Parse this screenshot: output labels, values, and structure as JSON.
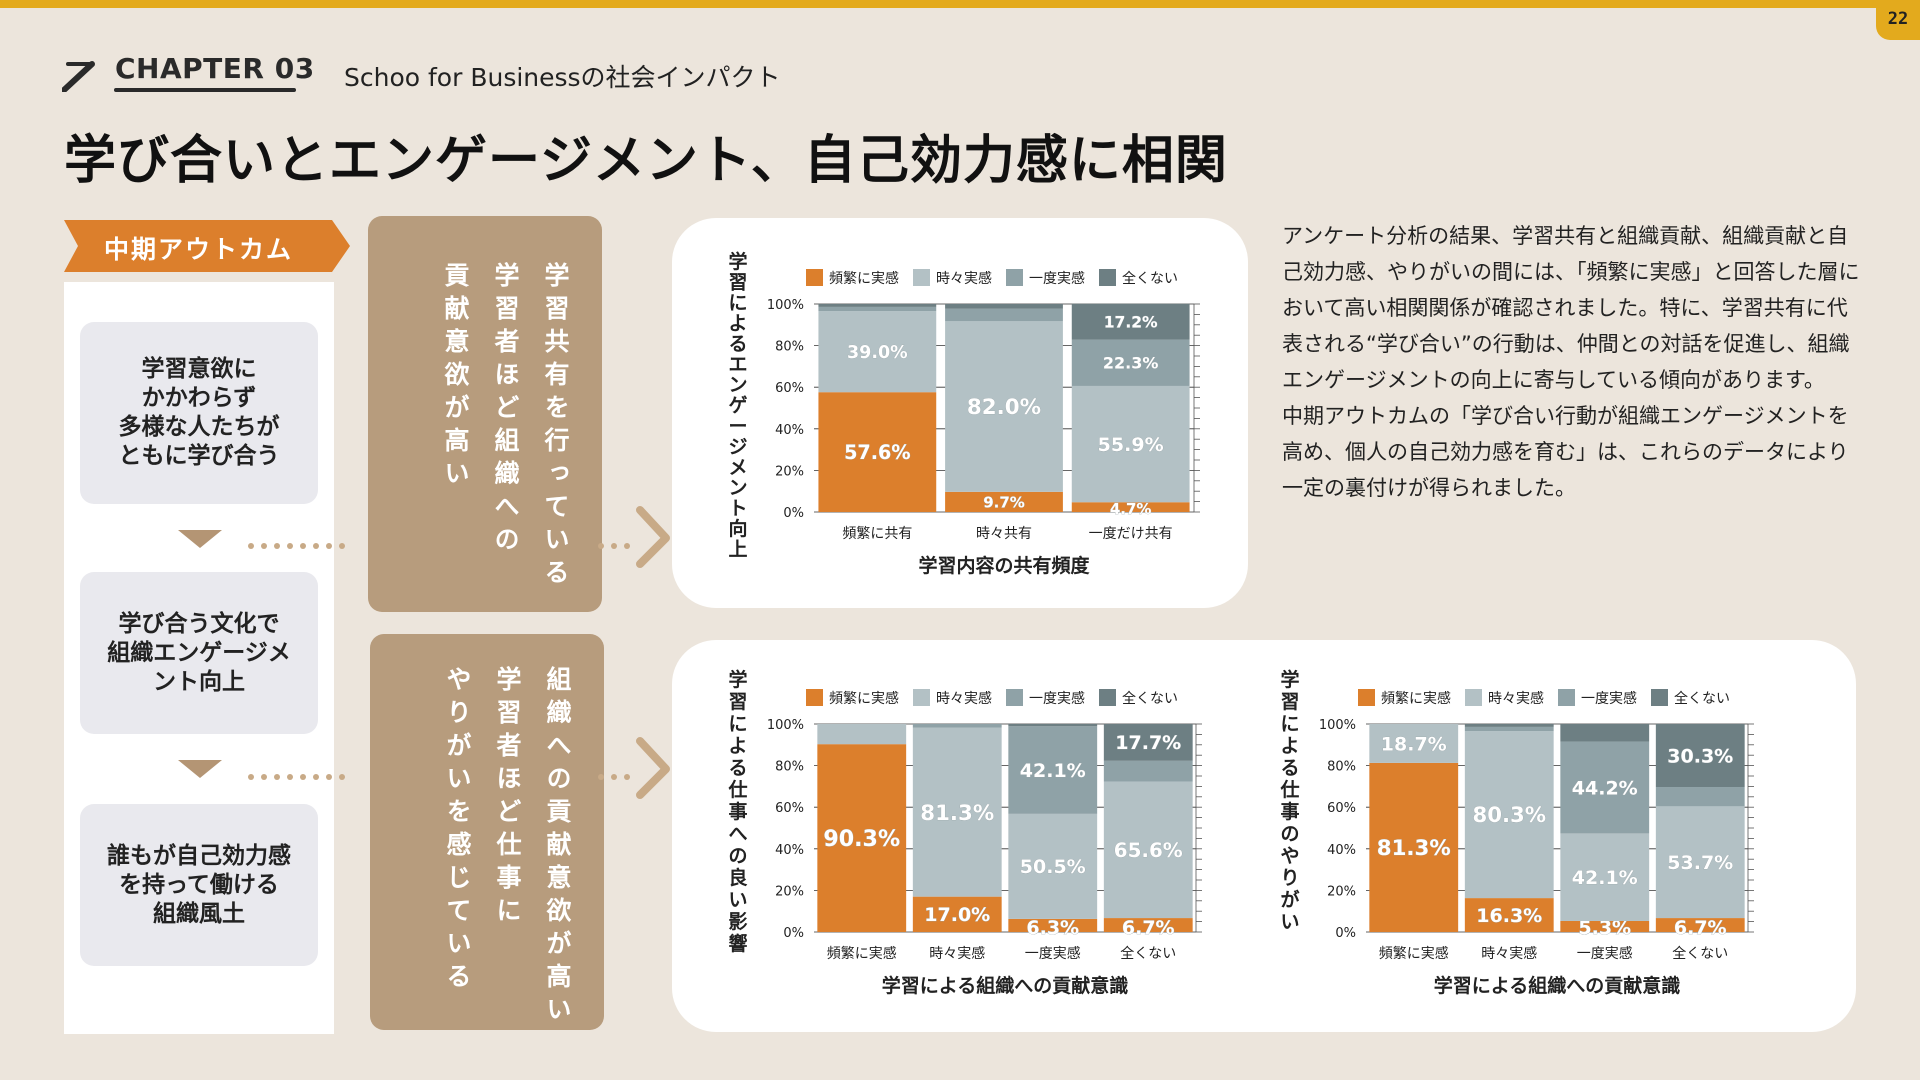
{
  "page": {
    "number": "22"
  },
  "chapter": {
    "label": "CHAPTER 03",
    "subtitle": "Schoo for Businessの社会インパクト"
  },
  "title": "学び合いとエンゲージメント、自己効力感に相関",
  "outcome": {
    "tag": "中期アウトカム",
    "cards": [
      "学習意欲に\nかかわらず\n多様な人たちが\nともに学び合う",
      "学び合う文化で\n組織エンゲージメ\nント向上",
      "誰もが自己効力感\nを持って働ける\n組織風土"
    ]
  },
  "findings": {
    "top": [
      "学習共有を行っている",
      "学習者ほど組織への",
      "貢献意欲が高い"
    ],
    "bottom": [
      "組織への貢献意欲が高い",
      "学習者ほど仕事に",
      "やりがいを感じている"
    ]
  },
  "body": {
    "p1": "アンケート分析の結果、学習共有と組織貢献、組織貢献と自己効力感、やりがいの間には、「頻繁に実感」と回答した層において高い相関関係が確認されました。特に、学習共有に代表される“学び合い”の行動は、仲間との対話を促進し、組織エンゲージメントの向上に寄与している傾向があります。",
    "p2": "中期アウトカムの「学び合い行動が組織エンゲージメントを高め、個人の自己効力感を育む」は、これらのデータにより一定の裏付けが得られました。"
  },
  "colors": {
    "accent": "#e3aa1d",
    "orange": "#dc7f2c",
    "light": "#b3c1c5",
    "mid": "#8fa2a7",
    "dark": "#6d7f83",
    "brown": "#b79c7d"
  },
  "chart_data": [
    {
      "type": "bar",
      "stacked": true,
      "ylabel": "学習によるエンゲージメント向上",
      "xlabel": "学習内容の共有頻度",
      "categories": [
        "頻繁に共有",
        "時々共有",
        "一度だけ共有"
      ],
      "ylim": [
        0,
        100
      ],
      "yticks": [
        "0%",
        "20%",
        "40%",
        "60%",
        "80%",
        "100%"
      ],
      "series": [
        {
          "name": "頻繁に実感",
          "color": "#dc7f2c",
          "values": [
            57.6,
            9.7,
            4.7
          ],
          "labels": [
            "57.6%",
            "9.7%",
            "4.7%"
          ]
        },
        {
          "name": "時々実感",
          "color": "#b3c1c5",
          "values": [
            39.0,
            82.0,
            55.9
          ],
          "labels": [
            "39.0%",
            "82.0%",
            "55.9%"
          ]
        },
        {
          "name": "一度実感",
          "color": "#8fa2a7",
          "values": [
            2.0,
            6.0,
            22.3
          ],
          "labels": [
            "",
            "",
            "22.3%"
          ]
        },
        {
          "name": "全くない",
          "color": "#6d7f83",
          "values": [
            1.4,
            2.3,
            17.2
          ],
          "labels": [
            "",
            "",
            "17.2%"
          ]
        }
      ],
      "legend_position": "top"
    },
    {
      "type": "bar",
      "stacked": true,
      "ylabel": "学習による仕事への良い影響",
      "xlabel": "学習による組織への貢献意識",
      "categories": [
        "頻繁に実感",
        "時々実感",
        "一度実感",
        "全くない"
      ],
      "ylim": [
        0,
        100
      ],
      "yticks": [
        "0%",
        "20%",
        "40%",
        "60%",
        "80%",
        "100%"
      ],
      "series": [
        {
          "name": "頻繁に実感",
          "color": "#dc7f2c",
          "values": [
            90.3,
            17.0,
            6.3,
            6.7
          ],
          "labels": [
            "90.3%",
            "17.0%",
            "6.3%",
            "6.7%"
          ]
        },
        {
          "name": "時々実感",
          "color": "#b3c1c5",
          "values": [
            9.7,
            81.3,
            50.5,
            65.6
          ],
          "labels": [
            "",
            "81.3%",
            "50.5%",
            "65.6%"
          ]
        },
        {
          "name": "一度実感",
          "color": "#8fa2a7",
          "values": [
            0,
            1.7,
            42.1,
            10.0
          ],
          "labels": [
            "",
            "",
            "42.1%",
            ""
          ]
        },
        {
          "name": "全くない",
          "color": "#6d7f83",
          "values": [
            0,
            0,
            1.1,
            17.7
          ],
          "labels": [
            "",
            "",
            "",
            "17.7%"
          ]
        }
      ],
      "legend_position": "top"
    },
    {
      "type": "bar",
      "stacked": true,
      "ylabel": "学習による仕事のやりがい",
      "xlabel": "学習による組織への貢献意識",
      "categories": [
        "頻繁に実感",
        "時々実感",
        "一度実感",
        "全くない"
      ],
      "ylim": [
        0,
        100
      ],
      "yticks": [
        "0%",
        "20%",
        "40%",
        "60%",
        "80%",
        "100%"
      ],
      "series": [
        {
          "name": "頻繁に実感",
          "color": "#dc7f2c",
          "values": [
            81.3,
            16.3,
            5.3,
            6.7
          ],
          "labels": [
            "81.3%",
            "16.3%",
            "5.3%",
            "6.7%"
          ]
        },
        {
          "name": "時々実感",
          "color": "#b3c1c5",
          "values": [
            18.7,
            80.3,
            42.1,
            53.7
          ],
          "labels": [
            "18.7%",
            "80.3%",
            "42.1%",
            "53.7%"
          ]
        },
        {
          "name": "一度実感",
          "color": "#8fa2a7",
          "values": [
            0,
            2.0,
            44.2,
            9.3
          ],
          "labels": [
            "",
            "",
            "44.2%",
            ""
          ]
        },
        {
          "name": "全くない",
          "color": "#6d7f83",
          "values": [
            0,
            1.4,
            8.4,
            30.3
          ],
          "labels": [
            "",
            "",
            "",
            "30.3%"
          ]
        }
      ],
      "legend_position": "top"
    }
  ]
}
